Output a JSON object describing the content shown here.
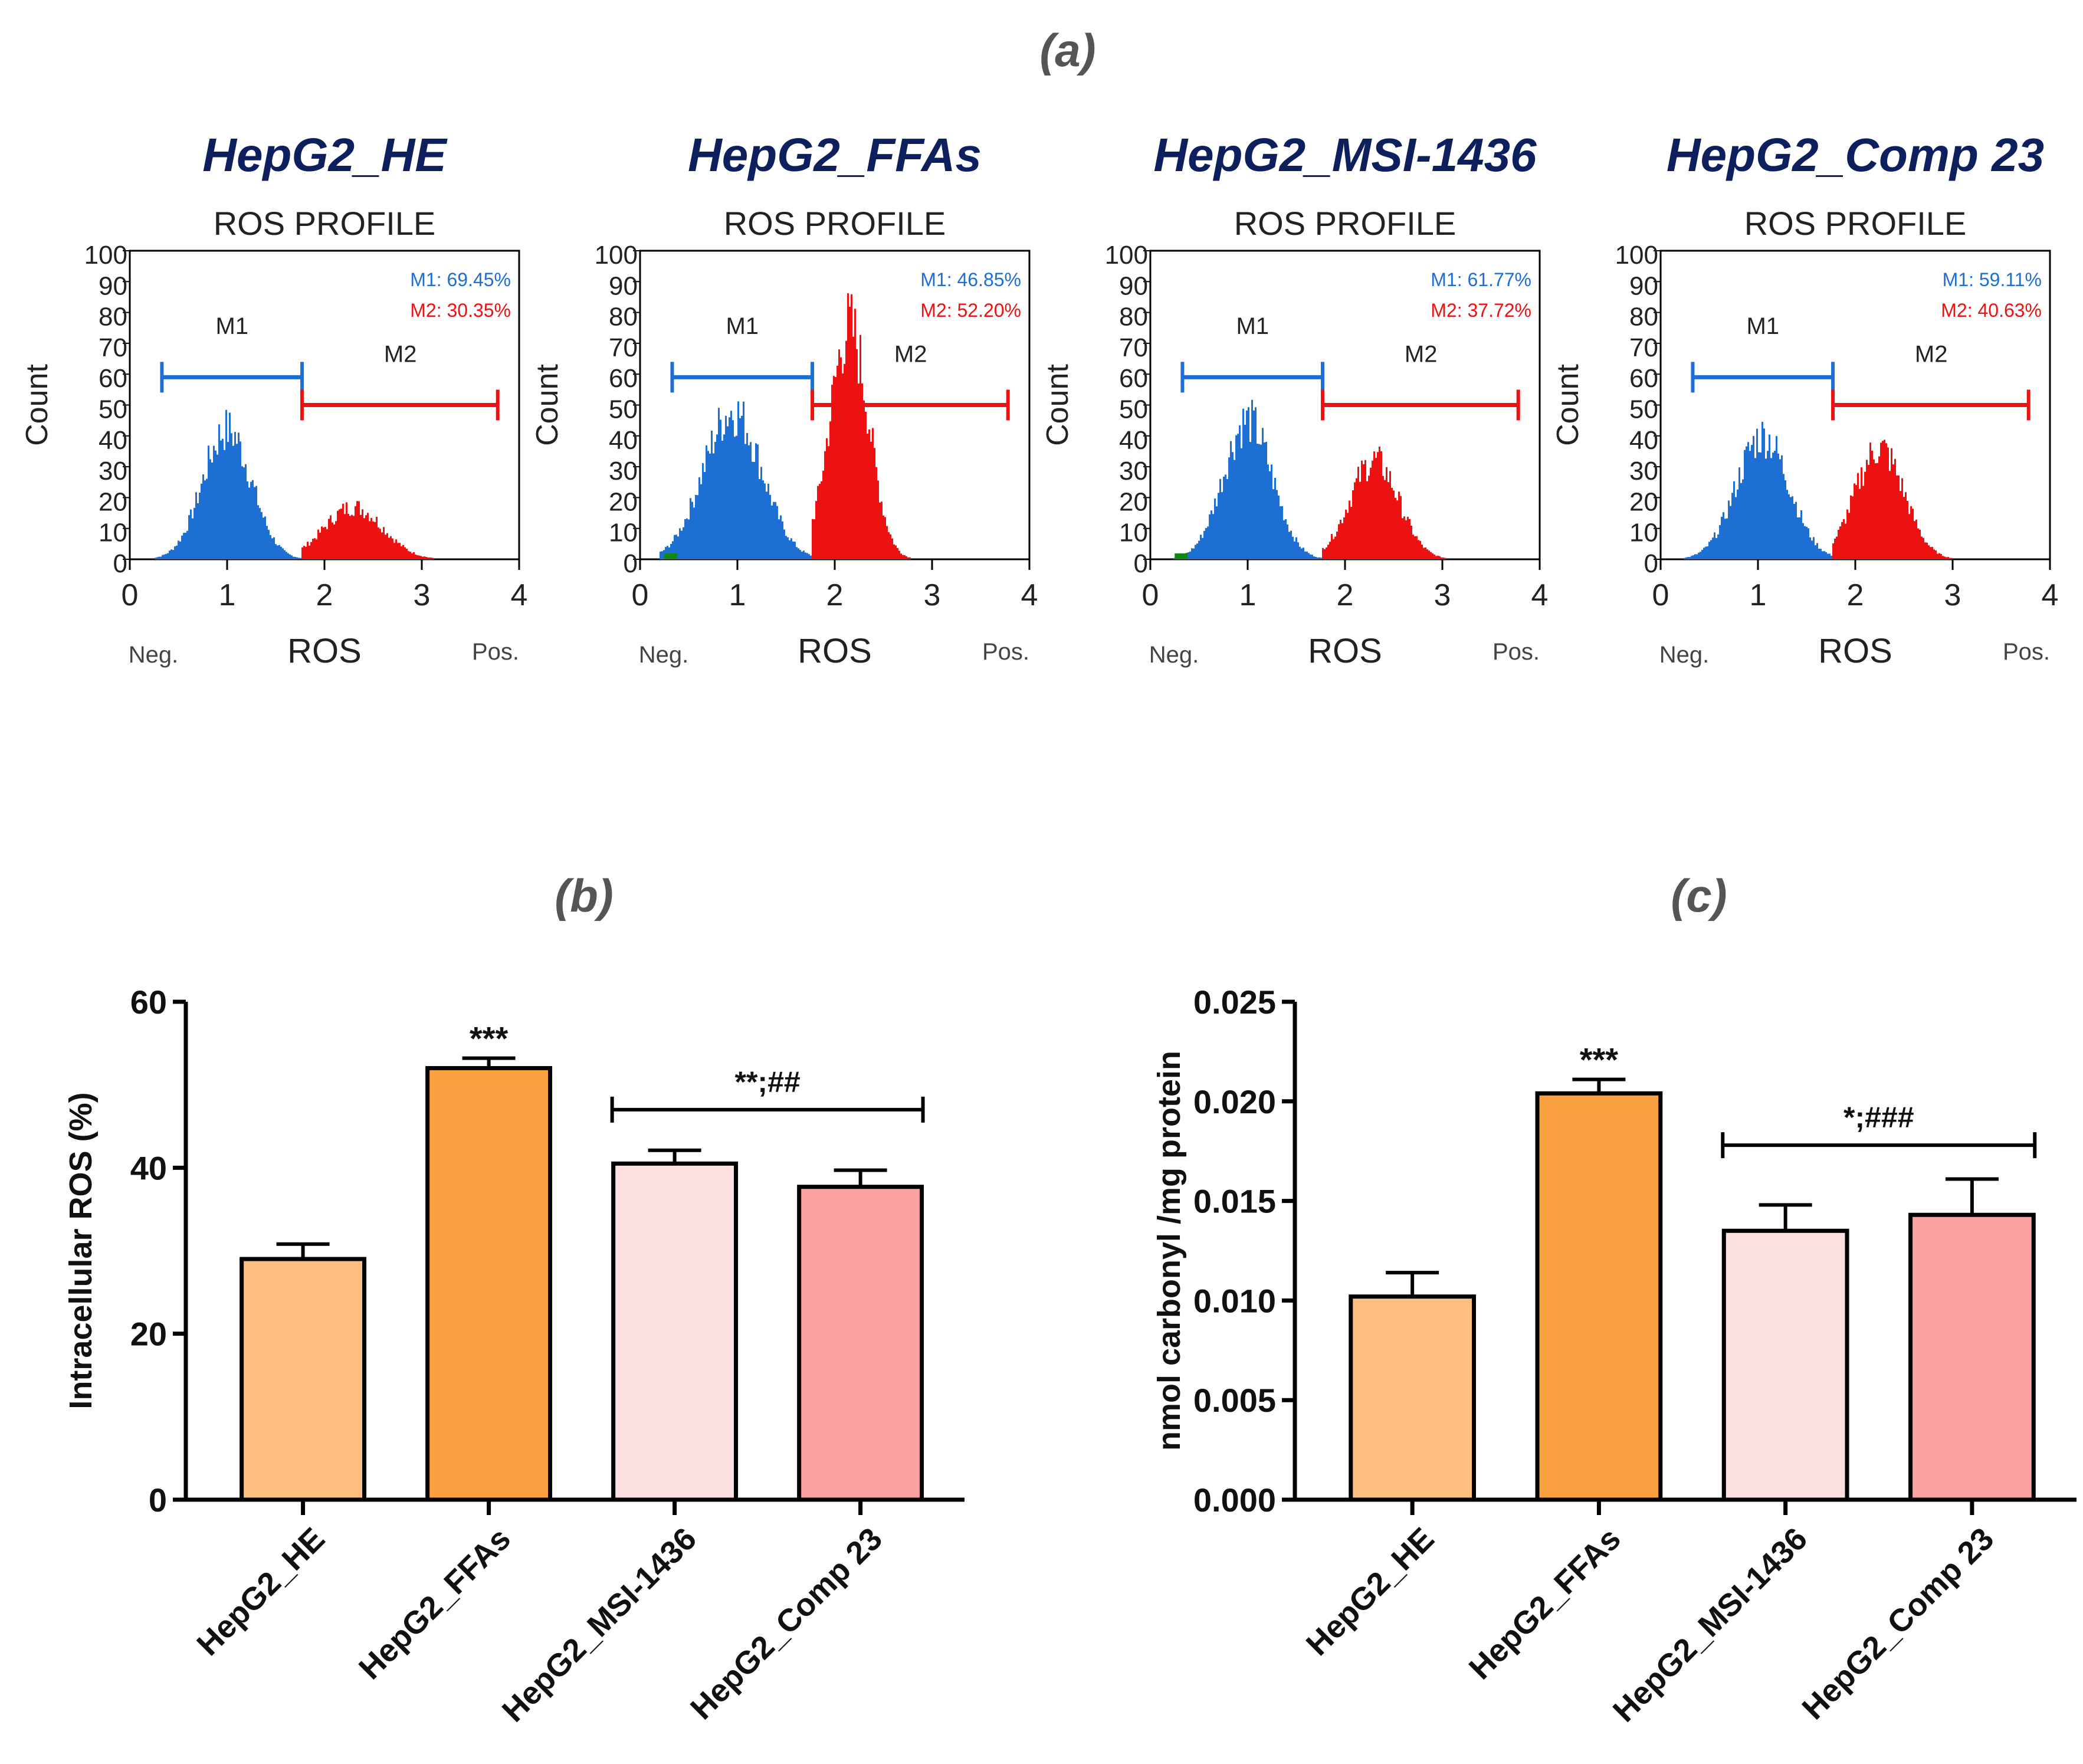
{
  "panel_labels": {
    "a": "(a)",
    "b": "(b)",
    "c": "(c)"
  },
  "colors": {
    "blue": "#1e6fd4",
    "red": "#ee1111",
    "green": "#118811",
    "title_navy": "#0d1f5c",
    "bar_he": "#fdbf7d",
    "bar_ffas": "#f9a03f",
    "bar_msi": "#fde0e0",
    "bar_comp": "#f9a0a0"
  },
  "flow_panels": [
    {
      "title": "HepG2_HE",
      "subtitle": "ROS PROFILE",
      "m1_label": "M1",
      "m2_label": "M2",
      "m1_text": "M1: 69.45%",
      "m2_text": "M2: 30.35%",
      "blue_peak": {
        "center": 1.0,
        "width": 0.25,
        "height": 42
      },
      "red_peak": {
        "center": 2.3,
        "width": 0.3,
        "height": 17
      }
    },
    {
      "title": "HepG2_FFAs",
      "subtitle": "ROS PROFILE",
      "m1_label": "M1",
      "m2_label": "M2",
      "m1_text": "M1: 46.85%",
      "m2_text": "M2: 52.20%",
      "blue_peak": {
        "center": 0.95,
        "width": 0.3,
        "height": 48
      },
      "red_peak": {
        "center": 2.15,
        "width": 0.2,
        "height": 75
      }
    },
    {
      "title": "HepG2_MSI-1436",
      "subtitle": "ROS PROFILE",
      "m1_label": "M1",
      "m2_label": "M2",
      "m1_text": "M1: 61.77%",
      "m2_text": "M2: 37.72%",
      "blue_peak": {
        "center": 1.0,
        "width": 0.25,
        "height": 45
      },
      "red_peak": {
        "center": 2.3,
        "width": 0.25,
        "height": 32
      }
    },
    {
      "title": "HepG2_Comp 23",
      "subtitle": "ROS PROFILE",
      "m1_label": "M1",
      "m2_label": "M2",
      "m1_text": "M1: 59.11%",
      "m2_text": "M2: 40.63%",
      "blue_peak": {
        "center": 1.05,
        "width": 0.27,
        "height": 40
      },
      "red_peak": {
        "center": 2.25,
        "width": 0.25,
        "height": 36
      }
    }
  ],
  "flow_axes": {
    "ylabel": "Count",
    "xlabel": "ROS",
    "neg_label": "Neg.",
    "pos_label": "Pos.",
    "xlim": [
      0,
      4
    ],
    "ylim": [
      0,
      100
    ],
    "x_ticks": [
      "0",
      "1",
      "2",
      "3",
      "4"
    ],
    "y_ticks": [
      "0",
      "10",
      "20",
      "30",
      "40",
      "50",
      "60",
      "70",
      "80",
      "90",
      "100"
    ],
    "m1_range": [
      0.33,
      1.77
    ],
    "m2_range": [
      1.77,
      3.78
    ],
    "m1_level": 59,
    "m2_level": 50,
    "m1_label_level": 73,
    "m2_label_level": 64
  },
  "chart_data": [
    {
      "type": "bar",
      "title": "",
      "ylabel": "Intracellular ROS (%)",
      "xlabel": "",
      "ylim": [
        0,
        60
      ],
      "y_ticks": [
        "0",
        "20",
        "40",
        "60"
      ],
      "categories": [
        "HepG2_HE",
        "HepG2_FFAs",
        "HepG2_MSI-1436",
        "HepG2_Comp 23"
      ],
      "values": [
        29,
        52,
        40.5,
        37.7
      ],
      "errors": [
        1.8,
        1.2,
        1.6,
        2.0
      ],
      "bar_colors": [
        "#fdbf7d",
        "#f9a03f",
        "#fde0e0",
        "#f9a0a0"
      ],
      "stars": [
        {
          "index": 1,
          "text": "***"
        }
      ],
      "bracket": {
        "from": 2,
        "to": 3,
        "level": 47,
        "text": "**;##"
      }
    },
    {
      "type": "bar",
      "title": "",
      "ylabel": "nmol carbonyl /mg protein",
      "xlabel": "",
      "ylim": [
        0,
        0.025
      ],
      "y_ticks": [
        "0.000",
        "0.005",
        "0.010",
        "0.015",
        "0.020",
        "0.025"
      ],
      "categories": [
        "HepG2_HE",
        "HepG2_FFAs",
        "HepG2_MSI-1436",
        "HepG2_Comp 23"
      ],
      "values": [
        0.0102,
        0.0204,
        0.0135,
        0.0143
      ],
      "errors": [
        0.0012,
        0.0007,
        0.0013,
        0.0018
      ],
      "bar_colors": [
        "#fdbf7d",
        "#f9a03f",
        "#fde0e0",
        "#f9a0a0"
      ],
      "stars": [
        {
          "index": 1,
          "text": "***"
        }
      ],
      "bracket": {
        "from": 2,
        "to": 3,
        "level": 0.0178,
        "text": "*;###"
      }
    }
  ]
}
